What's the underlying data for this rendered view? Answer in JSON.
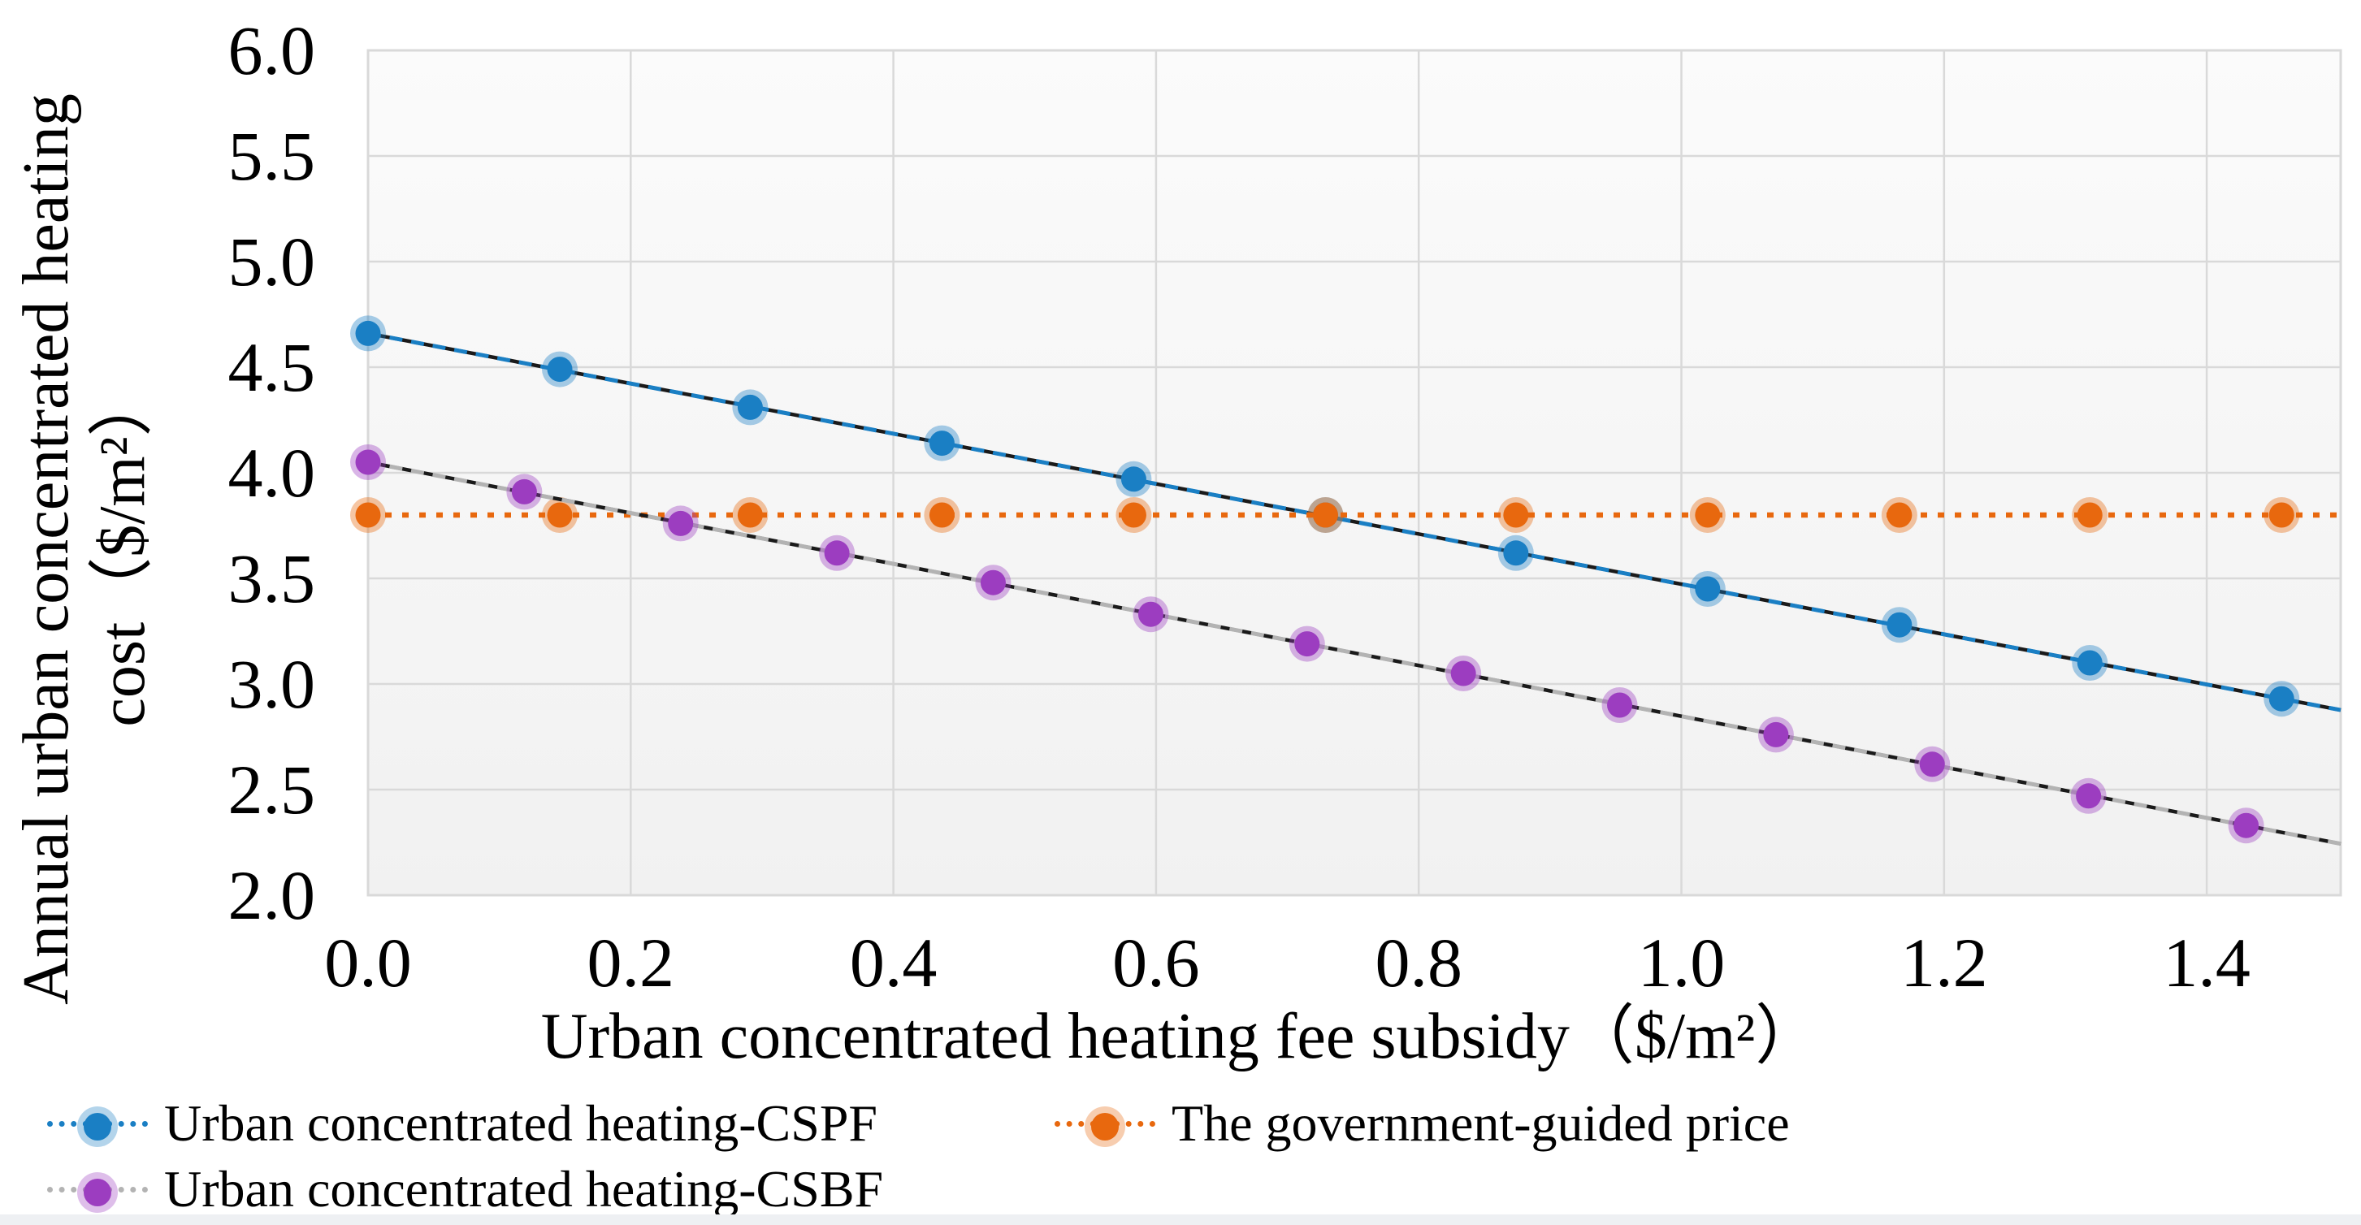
{
  "chart_data": {
    "type": "scatter",
    "title": "",
    "xlabel": "Urban concentrated heating fee subsidy（$/m²）",
    "ylabel": "Annual urban concentrated heating cost（$/m²）",
    "ylabel_lines": [
      "Annual urban concentrated heating",
      "cost（$/m²）"
    ],
    "xlim": [
      0,
      1.502
    ],
    "ylim": [
      2.0,
      6.0
    ],
    "x_tick_labels": [
      "0.0",
      "0.2",
      "0.4",
      "0.6",
      "0.8",
      "1.0",
      "1.2",
      "1.4"
    ],
    "y_tick_labels": [
      "6.0",
      "5.5",
      "5.0",
      "4.5",
      "4.0",
      "3.5",
      "3.0",
      "2.5",
      "2.0"
    ],
    "grid": true,
    "grid_color": "#d9d9d9",
    "plot_bg_top": "#fbfbfb",
    "plot_bg_bottom": "#f1f1f1",
    "legend_position": "bottom",
    "series": [
      {
        "name": "Urban concentrated heating-CSPF",
        "color": "#1a7fc4",
        "line_color": "#1a7fc4",
        "trend": true,
        "trend_color": "#1a1a1a",
        "dash": "16 11",
        "marker": "circle",
        "x": [
          0.0,
          0.146,
          0.291,
          0.437,
          0.583,
          0.729,
          0.874,
          1.02,
          1.166,
          1.311,
          1.457
        ],
        "y": [
          4.66,
          4.49,
          4.31,
          4.14,
          3.97,
          3.8,
          3.62,
          3.45,
          3.28,
          3.1,
          2.93
        ]
      },
      {
        "name": "The government-guided price",
        "color": "#e8680e",
        "line_color": "#e8680e",
        "trend": false,
        "trend_color": "#1a1a1a",
        "dash": "8 13",
        "marker": "circle",
        "x": [
          0.0,
          0.146,
          0.291,
          0.437,
          0.583,
          0.729,
          0.874,
          1.02,
          1.166,
          1.311,
          1.457
        ],
        "y": [
          3.8,
          3.8,
          3.8,
          3.8,
          3.8,
          3.8,
          3.8,
          3.8,
          3.8,
          3.8,
          3.8
        ]
      },
      {
        "name": "Urban concentrated heating-CSBF",
        "color": "#9c3dc0",
        "line_color": "#b3b3b3",
        "trend": true,
        "trend_color": "#1a1a1a",
        "dash": "16 11",
        "marker": "circle",
        "x": [
          0.0,
          0.119,
          0.238,
          0.357,
          0.476,
          0.596,
          0.715,
          0.834,
          0.953,
          1.072,
          1.191,
          1.31,
          1.43
        ],
        "y": [
          4.05,
          3.91,
          3.76,
          3.62,
          3.48,
          3.33,
          3.19,
          3.05,
          2.9,
          2.76,
          2.62,
          2.47,
          2.33
        ]
      }
    ]
  },
  "page": {
    "bottom_strip_color": "#eef0f3"
  }
}
